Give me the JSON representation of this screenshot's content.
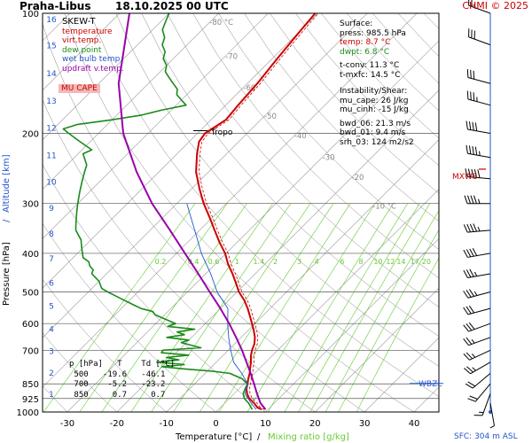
{
  "header": {
    "station": "Praha-Libus",
    "datetime": "18.10.2025 00 UTC",
    "copyright": "CHMI © 2025"
  },
  "legend": {
    "title": "SKEW-T",
    "items": [
      {
        "label": "temperature",
        "color": "#cc0000"
      },
      {
        "label": "virt.temp.",
        "color": "#cc0000"
      },
      {
        "label": "dew point",
        "color": "#1a8a1a"
      },
      {
        "label": "wet bulb temp.",
        "color": "#2255cc"
      },
      {
        "label": "updraft v.temp.",
        "color": "#9900aa"
      }
    ],
    "mu_cape": "MU CAPE"
  },
  "surface": {
    "title": "Surface:",
    "press": "press: 985.5 hPa",
    "temp": "temp: 8.7 °C",
    "dwpt": "dwpt: 6.8 °C",
    "tconv": "t-conv: 11.3 °C",
    "tmxfc": "t-mxfc: 14.5 °C",
    "instab_title": "Instability/Shear:",
    "mu_cape": "mu_cape: 26 J/kg",
    "mu_cinh": "mu_cinh: -15 J/kg",
    "bwd06": "bwd_06: 21.3 m/s",
    "bwd01": "bwd_01: 9.4 m/s",
    "srh03": "srh_03: 124 m2/s2"
  },
  "table": {
    "header": "p [hPa]   T    Td [°C]",
    "rows": [
      " 500   -19.6   -46.1",
      " 700    -5.2   -23.2",
      " 850     0.7     0.7"
    ]
  },
  "labels": {
    "tropo": "Tropo",
    "mxws": "MXWS",
    "wbzl": "WBZL",
    "sfc": "SFC: 304 m ASL",
    "xlabel_temp": "Temperature [°C]",
    "xlabel_sep": "/",
    "xlabel_mix": "Mixing ratio [g/kg]",
    "ylabel_left": "Pressure [hPa]",
    "ylabel_right": "Altitude [km]"
  },
  "colors": {
    "temp": "#cc0000",
    "dew": "#1a8a1a",
    "wetbulb": "#2255cc",
    "parcel": "#9900aa",
    "mixing": "#66cc33",
    "dry_adiabat": "#888888",
    "isotherm": "#999999",
    "isobar": "#555555",
    "mxws": "#cc0000",
    "wbzl": "#2255cc"
  },
  "chart_data": {
    "type": "line",
    "title": "Praha-Libus 18.10.2025 00 UTC",
    "xlabel": "Temperature [°C] / Mixing ratio [g/kg]",
    "ylabel": "Pressure [hPa]",
    "xlim": [
      -35,
      45
    ],
    "ylim": [
      1000,
      100
    ],
    "pressure_ticks": [
      100,
      200,
      300,
      400,
      500,
      600,
      700,
      850,
      925,
      1000
    ],
    "temp_ticks": [
      -30,
      -20,
      -10,
      0,
      10,
      20,
      30,
      40
    ],
    "altitude_ticks_km": [
      1,
      2,
      3,
      4,
      5,
      6,
      7,
      8,
      9,
      10,
      11,
      12,
      13,
      14,
      15,
      16
    ],
    "altitude_tick_pressures": [
      899,
      795,
      701,
      616,
      540,
      472,
      411,
      356,
      307,
      264,
      226,
      193,
      165,
      141,
      120,
      103
    ],
    "isotherm_labels": [
      {
        "value": -80,
        "label": "-80 °C",
        "p": 107
      },
      {
        "value": -70,
        "label": "-70",
        "p": 130
      },
      {
        "value": -60,
        "label": "-60",
        "p": 156
      },
      {
        "value": -50,
        "label": "-50",
        "p": 184
      },
      {
        "value": -40,
        "label": "-40",
        "p": 206
      },
      {
        "value": -30,
        "label": "-30",
        "p": 233
      },
      {
        "value": -20,
        "label": "-20",
        "p": 262
      },
      {
        "value": -10,
        "label": "-10 °C",
        "p": 309
      }
    ],
    "mixing_ratios": [
      0.2,
      0.4,
      0.6,
      1,
      1.4,
      2,
      3,
      4,
      6,
      8,
      10,
      12,
      14,
      17,
      20,
      25
    ],
    "mixing_labels": [
      "0.2",
      "0.4",
      "0.6",
      "1",
      "1.4",
      "2",
      "3",
      "4",
      "6",
      "8",
      "10",
      "12",
      "14",
      "17",
      "20",
      "25"
    ],
    "series": [
      {
        "name": "temperature",
        "p": [
          985.5,
          975,
          950,
          925,
          900,
          875,
          850,
          825,
          800,
          775,
          750,
          725,
          700,
          675,
          650,
          625,
          600,
          575,
          550,
          525,
          500,
          475,
          450,
          425,
          400,
          375,
          350,
          325,
          300,
          275,
          250,
          225,
          210,
          200,
          195,
          185,
          170,
          150,
          130,
          110,
          100
        ],
        "t": [
          8.7,
          7.5,
          5.9,
          4.0,
          2.6,
          1.5,
          0.7,
          -0.2,
          -1.0,
          -2.0,
          -3.0,
          -4.2,
          -5.2,
          -6.0,
          -7.2,
          -8.8,
          -10.6,
          -12.5,
          -14.5,
          -16.8,
          -19.6,
          -22.0,
          -24.6,
          -27.5,
          -30.2,
          -33.6,
          -37.0,
          -40.6,
          -44.6,
          -48.5,
          -52.5,
          -56.0,
          -58.0,
          -58.5,
          -58.0,
          -57.0,
          -57.5,
          -58.0,
          -59.0,
          -60.0,
          -60.5
        ]
      },
      {
        "name": "dew point",
        "p": [
          985.5,
          950,
          925,
          900,
          875,
          850,
          825,
          800,
          790,
          780,
          770,
          760,
          750,
          740,
          730,
          720,
          710,
          700,
          690,
          680,
          670,
          660,
          650,
          640,
          630,
          620,
          610,
          600,
          590,
          580,
          570,
          560,
          550,
          540,
          530,
          520,
          510,
          500,
          490,
          480,
          470,
          460,
          450,
          440,
          430,
          420,
          410,
          400,
          390,
          380,
          370,
          360,
          350,
          340,
          330,
          320,
          310,
          300,
          290,
          280,
          270,
          260,
          250,
          240,
          230,
          225,
          220,
          215,
          210,
          205,
          200,
          195,
          190,
          185,
          180,
          175,
          170,
          165,
          160,
          155,
          150,
          145,
          140,
          135,
          130,
          125,
          120,
          115,
          110,
          105,
          100
        ],
        "t": [
          6.8,
          4.8,
          3.0,
          1.8,
          1.2,
          0.7,
          -1.5,
          -5.0,
          -9.0,
          -15.0,
          -20.0,
          -16.0,
          -22.0,
          -18.0,
          -21.0,
          -17.0,
          -23.0,
          -23.2,
          -16.0,
          -18.5,
          -21.0,
          -20.0,
          -25.0,
          -22.0,
          -24.0,
          -21.0,
          -27.0,
          -26.0,
          -28.0,
          -30.0,
          -32.0,
          -33.0,
          -36.0,
          -38.0,
          -40.0,
          -42.0,
          -44.0,
          -46.1,
          -48.0,
          -49.0,
          -50.0,
          -51.5,
          -53.0,
          -53.5,
          -55.0,
          -56.0,
          -58.0,
          -59.0,
          -60.0,
          -61.0,
          -62.0,
          -63.5,
          -65.0,
          -66.0,
          -67.0,
          -68.0,
          -69.0,
          -70.0,
          -71.0,
          -72.0,
          -73.0,
          -74.0,
          -75.0,
          -76.0,
          -78.0,
          -79.0,
          -78.0,
          -80.0,
          -82.0,
          -84.0,
          -86.0,
          -88.0,
          -86.0,
          -80.0,
          -75.0,
          -72.0,
          -68.0,
          -70.0,
          -72.0,
          -73.0,
          -75.0,
          -77.0,
          -79.0,
          -80.0,
          -82.0,
          -83.0,
          -85.0,
          -86.0,
          -88.0,
          -89.0,
          -90.0
        ]
      },
      {
        "name": "wet bulb temp.",
        "p": [
          985.5,
          950,
          900,
          850,
          800,
          750,
          700,
          650,
          600,
          550,
          500,
          450,
          400,
          350,
          300
        ],
        "t": [
          7.6,
          5.3,
          2.2,
          0.7,
          -2.6,
          -6.5,
          -9.5,
          -12.5,
          -15.5,
          -18.5,
          -24.0,
          -29.0,
          -35.0,
          -41.0,
          -48.0
        ]
      },
      {
        "name": "updraft v.temp.",
        "p": [
          985.5,
          950,
          900,
          850,
          800,
          750,
          700,
          650,
          600,
          550,
          500,
          450,
          400,
          350,
          300,
          250,
          200,
          150,
          100
        ],
        "t": [
          9.5,
          7.2,
          4.6,
          2.0,
          -0.8,
          -3.9,
          -7.2,
          -11.0,
          -15.2,
          -20.0,
          -25.5,
          -31.5,
          -38.3,
          -46.0,
          -55.0,
          -64.5,
          -75.0,
          -86.0,
          -98.0
        ]
      }
    ],
    "wind_barbs": [
      {
        "p": 950,
        "dir": 170,
        "speed_kt": 8
      },
      {
        "p": 900,
        "dir": 200,
        "speed_kt": 15
      },
      {
        "p": 850,
        "dir": 220,
        "speed_kt": 20
      },
      {
        "p": 800,
        "dir": 230,
        "speed_kt": 20
      },
      {
        "p": 750,
        "dir": 240,
        "speed_kt": 25
      },
      {
        "p": 700,
        "dir": 245,
        "speed_kt": 25
      },
      {
        "p": 650,
        "dir": 250,
        "speed_kt": 25
      },
      {
        "p": 600,
        "dir": 250,
        "speed_kt": 30
      },
      {
        "p": 550,
        "dir": 255,
        "speed_kt": 30
      },
      {
        "p": 500,
        "dir": 255,
        "speed_kt": 35
      },
      {
        "p": 450,
        "dir": 260,
        "speed_kt": 35
      },
      {
        "p": 400,
        "dir": 260,
        "speed_kt": 40
      },
      {
        "p": 350,
        "dir": 265,
        "speed_kt": 45
      },
      {
        "p": 300,
        "dir": 270,
        "speed_kt": 45
      },
      {
        "p": 260,
        "dir": 275,
        "speed_kt": 50
      },
      {
        "p": 230,
        "dir": 280,
        "speed_kt": 45
      },
      {
        "p": 200,
        "dir": 280,
        "speed_kt": 40
      },
      {
        "p": 170,
        "dir": 285,
        "speed_kt": 35
      },
      {
        "p": 150,
        "dir": 285,
        "speed_kt": 30
      },
      {
        "p": 120,
        "dir": 290,
        "speed_kt": 30
      },
      {
        "p": 100,
        "dir": 290,
        "speed_kt": 25
      }
    ],
    "tropopause_p": 197,
    "mxws_p": 246,
    "wbzl_p": 848
  }
}
